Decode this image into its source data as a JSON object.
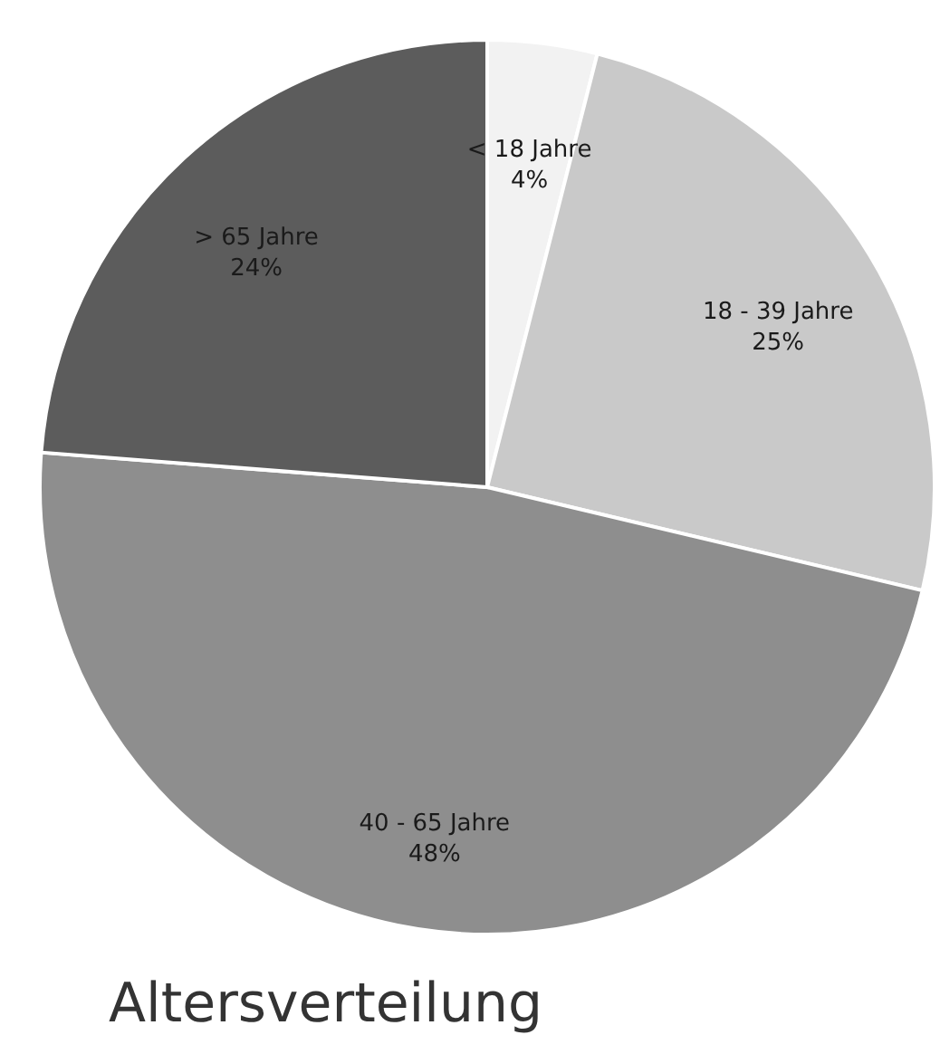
{
  "chart_data": {
    "type": "pie",
    "title": "Altersverteilung",
    "categories": [
      "< 18 Jahre",
      "18 - 39 Jahre",
      "40 - 65 Jahre",
      "> 65 Jahre"
    ],
    "values": [
      4,
      25,
      48,
      24
    ],
    "value_labels": [
      "4%",
      "25%",
      "48%",
      "24%"
    ],
    "colors": [
      "#f2f2f2",
      "#c9c9c9",
      "#8e8e8e",
      "#5c5c5c"
    ],
    "legend": false
  }
}
